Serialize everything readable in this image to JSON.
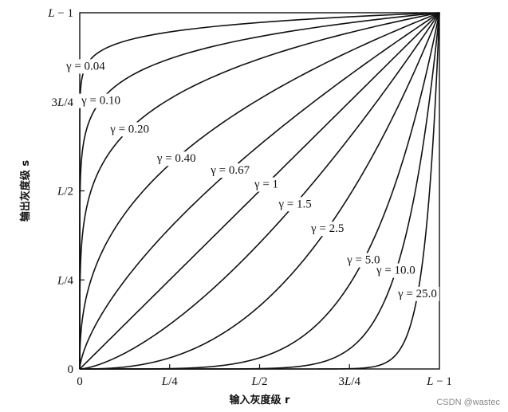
{
  "chart_data": {
    "type": "line",
    "x_ticks": [
      "0",
      "L/4",
      "L/2",
      "3L/4",
      "L − 1"
    ],
    "y_ticks": [
      "0",
      "L/4",
      "L/2",
      "3L/4",
      "L − 1"
    ],
    "xlim": [
      0,
      1
    ],
    "ylim": [
      0,
      1
    ],
    "xlabel": "输入灰度级 r",
    "ylabel": "输出灰度级 s",
    "grid": false,
    "series": [
      {
        "name": "γ = 0.04",
        "gamma": 0.04
      },
      {
        "name": "γ = 0.10",
        "gamma": 0.1
      },
      {
        "name": "γ = 0.20",
        "gamma": 0.2
      },
      {
        "name": "γ = 0.40",
        "gamma": 0.4
      },
      {
        "name": "γ = 0.67",
        "gamma": 0.67
      },
      {
        "name": "γ = 1",
        "gamma": 1
      },
      {
        "name": "γ = 1.5",
        "gamma": 1.5
      },
      {
        "name": "γ = 2.5",
        "gamma": 2.5
      },
      {
        "name": "γ = 5.0",
        "gamma": 5.0
      },
      {
        "name": "γ = 10.0",
        "gamma": 10.0
      },
      {
        "name": "γ = 25.0",
        "gamma": 25.0
      }
    ]
  },
  "watermark": "CSDN @wastec"
}
